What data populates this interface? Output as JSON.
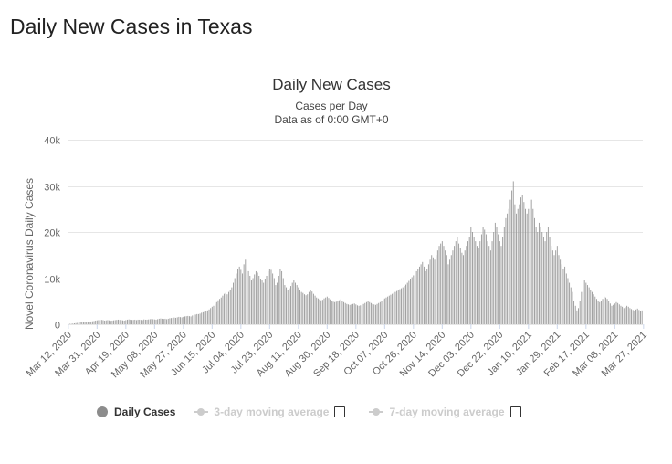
{
  "page": {
    "title": "Daily New Cases in Texas"
  },
  "chart_data": {
    "type": "bar",
    "title": "Daily New Cases",
    "subtitle": [
      "Cases per Day",
      "Data as of 0:00 GMT+0"
    ],
    "xlabel": "",
    "ylabel": "Novel Coronavirus Daily Cases",
    "ylim": [
      0,
      40000
    ],
    "yticks": [
      0,
      10000,
      20000,
      30000,
      40000
    ],
    "ytick_labels": [
      "0",
      "10k",
      "20k",
      "30k",
      "40k"
    ],
    "x_tick_labels": [
      "Mar 12, 2020",
      "Mar 31, 2020",
      "Apr 19, 2020",
      "May 08, 2020",
      "May 27, 2020",
      "Jun 15, 2020",
      "Jul 04, 2020",
      "Jul 23, 2020",
      "Aug 11, 2020",
      "Aug 30, 2020",
      "Sep 18, 2020",
      "Oct 07, 2020",
      "Oct 26, 2020",
      "Nov 14, 2020",
      "Dec 03, 2020",
      "Dec 22, 2020",
      "Jan 10, 2021",
      "Jan 29, 2021",
      "Feb 17, 2021",
      "Mar 08, 2021",
      "Mar 27, 2021"
    ],
    "x_tick_every_days": 19,
    "bar_color": "#999999",
    "grid": true,
    "legend_position": "bottom",
    "series": [
      {
        "name": "Daily Cases",
        "visible": true,
        "start_date": "2020-03-12",
        "values": [
          50,
          80,
          100,
          150,
          200,
          250,
          300,
          350,
          400,
          400,
          450,
          500,
          500,
          550,
          550,
          600,
          650,
          700,
          800,
          850,
          900,
          900,
          950,
          900,
          800,
          850,
          900,
          850,
          750,
          800,
          850,
          900,
          950,
          1000,
          950,
          900,
          850,
          800,
          900,
          1000,
          1050,
          1000,
          950,
          950,
          1000,
          900,
          1000,
          1000,
          950,
          900,
          1050,
          1000,
          1000,
          1050,
          1100,
          1150,
          1100,
          1050,
          1000,
          1100,
          1200,
          1250,
          1200,
          1150,
          1200,
          1100,
          1200,
          1300,
          1350,
          1400,
          1450,
          1400,
          1500,
          1600,
          1550,
          1500,
          1600,
          1700,
          1750,
          1800,
          1750,
          1700,
          1900,
          2000,
          2100,
          2200,
          2200,
          2300,
          2500,
          2600,
          2700,
          2800,
          3000,
          3200,
          3500,
          3800,
          4000,
          4400,
          4800,
          5200,
          5500,
          5800,
          6200,
          6600,
          6800,
          6500,
          7000,
          7500,
          8000,
          9000,
          10000,
          11000,
          12000,
          12500,
          11800,
          11000,
          13000,
          14000,
          12800,
          11500,
          10500,
          9500,
          10000,
          10800,
          11500,
          11200,
          10500,
          9800,
          9500,
          9000,
          9800,
          10500,
          11500,
          12000,
          11800,
          11000,
          10000,
          8500,
          9000,
          10500,
          12000,
          11500,
          10000,
          8500,
          8000,
          7500,
          7800,
          8300,
          9000,
          9500,
          9000,
          8500,
          8000,
          7500,
          7000,
          6800,
          6500,
          6300,
          6500,
          7000,
          7400,
          7100,
          6600,
          6200,
          5800,
          5600,
          5400,
          5200,
          5300,
          5600,
          5800,
          6000,
          5700,
          5400,
          5100,
          4900,
          4800,
          4900,
          5000,
          5200,
          5400,
          5100,
          4800,
          4600,
          4400,
          4300,
          4200,
          4300,
          4400,
          4500,
          4300,
          4100,
          4000,
          4100,
          4200,
          4400,
          4600,
          4800,
          5000,
          4800,
          4600,
          4400,
          4300,
          4200,
          4400,
          4600,
          4800,
          5100,
          5400,
          5600,
          5800,
          6000,
          6200,
          6400,
          6600,
          6800,
          7000,
          7200,
          7400,
          7600,
          7800,
          8000,
          8300,
          8600,
          9000,
          9400,
          9800,
          10200,
          10600,
          11000,
          11500,
          12000,
          12500,
          13000,
          13500,
          12500,
          11500,
          12000,
          13000,
          14000,
          15000,
          14500,
          14000,
          15000,
          16000,
          17000,
          17500,
          18000,
          17000,
          16000,
          15000,
          13000,
          14000,
          15000,
          16000,
          17000,
          18000,
          19000,
          17500,
          16500,
          15500,
          15000,
          16000,
          17000,
          18000,
          19000,
          21000,
          20000,
          19000,
          18000,
          17000,
          16500,
          18000,
          19500,
          21000,
          20500,
          19500,
          18000,
          17000,
          16000,
          18000,
          20000,
          22000,
          21000,
          19500,
          18000,
          17000,
          19000,
          21000,
          23000,
          24000,
          25000,
          27000,
          29000,
          31000,
          26000,
          24000,
          25000,
          26000,
          27500,
          28000,
          26500,
          25000,
          24000,
          25000,
          26000,
          27000,
          25000,
          23000,
          21000,
          20000,
          22000,
          21000,
          20000,
          19000,
          18000,
          20000,
          21000,
          19000,
          17000,
          16000,
          15000,
          16000,
          17000,
          15000,
          14000,
          13000,
          12000,
          12500,
          11000,
          10000,
          9000,
          8000,
          7000,
          5000,
          4000,
          3000,
          3500,
          5000,
          7000,
          8000,
          9500,
          9000,
          8500,
          8000,
          7500,
          7000,
          6500,
          6000,
          5500,
          5000,
          4800,
          5000,
          5500,
          6000,
          5800,
          5500,
          5000,
          4500,
          4000,
          4200,
          4500,
          4800,
          4600,
          4300,
          4000,
          3800,
          3500,
          3700,
          4000,
          3800,
          3500,
          3300,
          3100,
          2900,
          3200,
          3400,
          3100,
          2800,
          3000
        ]
      },
      {
        "name": "3-day moving average",
        "visible": false
      },
      {
        "name": "7-day moving average",
        "visible": false
      }
    ]
  },
  "legend": {
    "items": [
      {
        "label": "Daily Cases"
      },
      {
        "label": "3-day moving average"
      },
      {
        "label": "7-day moving average"
      }
    ]
  }
}
